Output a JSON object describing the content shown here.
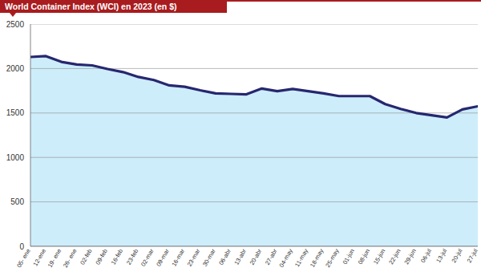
{
  "chart_data": {
    "type": "area",
    "title": "World Container Index (WCI) en 2023 (en $)",
    "categories": [
      "05- ene",
      "12-ene",
      "19- ene",
      "26- ene",
      "02-feb",
      "09-feb",
      "16-feb",
      "23-feb",
      "02-mar",
      "09-mar",
      "16-mar",
      "23-mar",
      "30-mar",
      "06-abr",
      "13-abr",
      "20-abr",
      "27-abr",
      "04-may",
      "11-may",
      "18-may",
      "25-may",
      "01-jun",
      "08-jun",
      "15-jun",
      "22-jun",
      "29-jun",
      "06-jul",
      "13-jul",
      "20-jul",
      "27-jul"
    ],
    "values": [
      2130,
      2140,
      2075,
      2045,
      2035,
      1995,
      1960,
      1905,
      1870,
      1810,
      1795,
      1755,
      1720,
      1715,
      1710,
      1775,
      1745,
      1770,
      1745,
      1720,
      1690,
      1690,
      1690,
      1600,
      1545,
      1500,
      1475,
      1450,
      1540,
      1575
    ],
    "color": "#27276f",
    "ylim": [
      0,
      2500
    ],
    "yticks": [
      0,
      500,
      1000,
      1500,
      2000,
      2500
    ],
    "grid": true
  }
}
